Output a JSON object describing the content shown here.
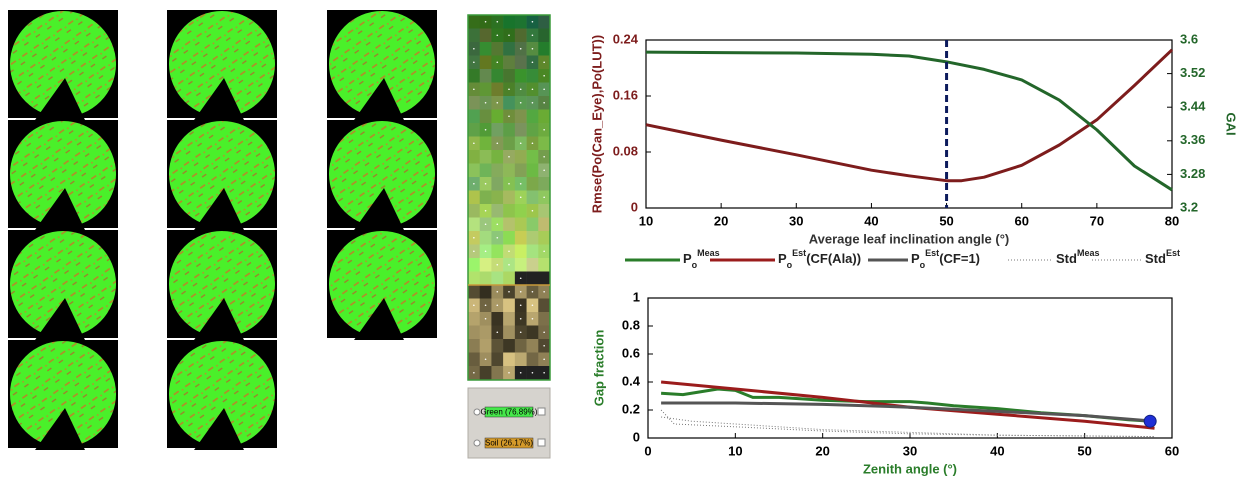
{
  "chart_data": [
    {
      "type": "line",
      "xlabel": "Average leaf inclination angle (°)",
      "ylabel": "Rmse(Po(Can_Eye),Po(LUT))",
      "y2label": "GAI",
      "xlim": [
        10,
        80
      ],
      "xticks": [
        10,
        20,
        30,
        40,
        50,
        60,
        70,
        80
      ],
      "ylim": [
        0,
        0.24
      ],
      "yticks": [
        0,
        0.08,
        0.16,
        0.24
      ],
      "y2lim": [
        3.2,
        3.6
      ],
      "y2ticks": [
        3.2,
        3.28,
        3.36,
        3.44,
        3.52,
        3.6
      ],
      "vline": 50,
      "series": [
        {
          "color": "#7d1c1c",
          "x": [
            10,
            20,
            30,
            40,
            45,
            50,
            52,
            55,
            60,
            65,
            70,
            75,
            80
          ],
          "values": [
            0.119,
            0.097,
            0.076,
            0.054,
            0.046,
            0.039,
            0.039,
            0.044,
            0.061,
            0.09,
            0.126,
            0.175,
            0.226
          ]
        },
        {
          "color": "#23662a",
          "axis": "y2",
          "x": [
            10,
            20,
            30,
            40,
            45,
            50,
            55,
            60,
            65,
            70,
            75,
            80
          ],
          "values": [
            3.571,
            3.57,
            3.569,
            3.566,
            3.562,
            3.548,
            3.53,
            3.505,
            3.457,
            3.386,
            3.3,
            3.243
          ]
        }
      ]
    },
    {
      "type": "line",
      "xlabel": "Zenith angle (°)",
      "ylabel": "Gap fraction",
      "xlim": [
        0,
        60
      ],
      "xticks": [
        0,
        10,
        20,
        30,
        40,
        50,
        60
      ],
      "ylim": [
        0,
        1
      ],
      "yticks": [
        0,
        0.2,
        0.4,
        0.6,
        0.8,
        1
      ],
      "legend": "top",
      "series": [
        {
          "name": "P",
          "sub": "o",
          "sup": "Meas",
          "color": "#2a7d2a",
          "x": [
            1.5,
            4,
            8,
            10,
            12,
            15,
            20,
            25,
            30,
            32,
            35,
            40,
            45,
            50,
            55,
            57.5
          ],
          "values": [
            0.32,
            0.31,
            0.35,
            0.34,
            0.29,
            0.29,
            0.27,
            0.26,
            0.26,
            0.25,
            0.23,
            0.21,
            0.18,
            0.16,
            0.13,
            0.12
          ]
        },
        {
          "name": "P",
          "sub": "o",
          "sup": "Est",
          "suffix": "(CF(Ala))",
          "color": "#9b1c1c",
          "x": [
            1.5,
            10,
            20,
            30,
            40,
            50,
            58
          ],
          "values": [
            0.4,
            0.35,
            0.29,
            0.22,
            0.17,
            0.12,
            0.07
          ]
        },
        {
          "name": "P",
          "sub": "o",
          "sup": "Est",
          "suffix": "(CF=1)",
          "color": "#555555",
          "x": [
            1.5,
            10,
            20,
            30,
            40,
            50,
            58
          ],
          "values": [
            0.25,
            0.25,
            0.24,
            0.22,
            0.19,
            0.16,
            0.12
          ]
        },
        {
          "name": "Std",
          "sup": "Meas",
          "color": "#777777",
          "dotted": true,
          "x": [
            1.5,
            5,
            10,
            20,
            30,
            40,
            50,
            58
          ],
          "values": [
            0.15,
            0.12,
            0.1,
            0.06,
            0.04,
            0.02,
            0.015,
            0.01
          ]
        },
        {
          "name": "Std",
          "sup": "Est",
          "color": "#777777",
          "dotted": true,
          "x": [
            1.5,
            3,
            10,
            20,
            30,
            40,
            58
          ],
          "values": [
            0.2,
            0.1,
            0.08,
            0.05,
            0.03,
            0.02,
            0.01
          ]
        }
      ],
      "point": {
        "x": 57.5,
        "y": 0.12,
        "color": "#1f2fd6"
      }
    }
  ],
  "panel": {
    "options": [
      "Green (76.89%)",
      "Soil (26.17%)"
    ]
  }
}
